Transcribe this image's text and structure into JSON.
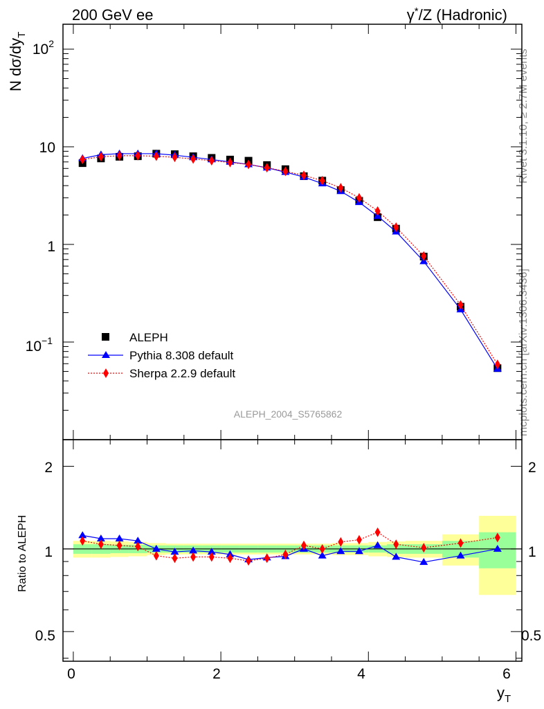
{
  "header": {
    "left_title": "200 GeV ee",
    "right_title_parts": {
      "gamma": "γ",
      "star": "*",
      "rest": "/Z (Hadronic)"
    }
  },
  "side_text": {
    "rivet_version": "Rivet 3.1.10, ≥ 2.7M events",
    "source": "mcplots.cern.ch [arXiv:1306.3436]"
  },
  "analysis_id": "ALEPH_2004_S5765862",
  "axes": {
    "main_ylabel_parts": {
      "prefix": "N dσ/dy",
      "sub": "T"
    },
    "ratio_ylabel": "Ratio to ALEPH",
    "xlabel_parts": {
      "main": "y",
      "sub": "T"
    }
  },
  "main_ytick_labels": {
    "t100": {
      "base": "10",
      "exp": "2"
    },
    "t10": "10",
    "t1": "1",
    "t01": {
      "base": "10",
      "exp": "−1"
    }
  },
  "ratio_ytick_labels": [
    "0.5",
    "1",
    "2"
  ],
  "xtick_labels": [
    "0",
    "2",
    "4",
    "6"
  ],
  "legend": [
    {
      "name": "ALEPH",
      "color": "#000000",
      "marker": "square"
    },
    {
      "name": "Pythia 8.308 default",
      "color": "#0000ff",
      "marker": "triangle"
    },
    {
      "name": "Sherpa 2.2.9 default",
      "color": "#ff0000",
      "marker": "diamond"
    }
  ],
  "chart_data": [
    {
      "type": "scatter",
      "title": "",
      "xlabel": "y_T",
      "ylabel": "N dσ/dy_T",
      "yscale": "log",
      "xlim": [
        -0.14,
        6.08
      ],
      "ylim": [
        0.01,
        180
      ],
      "x": [
        0.125,
        0.375,
        0.625,
        0.875,
        1.125,
        1.375,
        1.625,
        1.875,
        2.125,
        2.375,
        2.625,
        2.875,
        3.125,
        3.375,
        3.625,
        3.875,
        4.125,
        4.375,
        4.75,
        5.25,
        5.75
      ],
      "series": [
        {
          "name": "ALEPH",
          "values": [
            6.8,
            7.6,
            7.9,
            8.0,
            8.5,
            8.4,
            8.0,
            7.7,
            7.4,
            7.2,
            6.5,
            5.9,
            5.0,
            4.5,
            3.6,
            2.8,
            1.9,
            1.45,
            0.75,
            0.23,
            0.054
          ]
        },
        {
          "name": "Pythia 8.308 default",
          "values": [
            7.6,
            8.3,
            8.5,
            8.5,
            8.5,
            8.2,
            7.8,
            7.4,
            7.0,
            6.6,
            6.1,
            5.5,
            4.9,
            4.2,
            3.5,
            2.7,
            1.95,
            1.35,
            0.67,
            0.215,
            0.053
          ]
        },
        {
          "name": "Sherpa 2.2.9 default",
          "values": [
            7.4,
            7.9,
            8.1,
            8.1,
            8.0,
            7.8,
            7.5,
            7.2,
            6.9,
            6.6,
            6.1,
            5.6,
            5.1,
            4.5,
            3.8,
            3.0,
            2.2,
            1.5,
            0.76,
            0.24,
            0.059
          ]
        }
      ]
    },
    {
      "type": "scatter",
      "title": "",
      "xlabel": "y_T",
      "ylabel": "Ratio to ALEPH",
      "yscale": "log",
      "xlim": [
        -0.14,
        6.08
      ],
      "ylim": [
        0.39,
        2.5
      ],
      "x": [
        0.125,
        0.375,
        0.625,
        0.875,
        1.125,
        1.375,
        1.625,
        1.875,
        2.125,
        2.375,
        2.625,
        2.875,
        3.125,
        3.375,
        3.625,
        3.875,
        4.125,
        4.375,
        4.75,
        5.25,
        5.75
      ],
      "bins": [
        [
          0,
          0.25
        ],
        [
          0.25,
          0.5
        ],
        [
          0.5,
          0.75
        ],
        [
          0.75,
          1.0
        ],
        [
          1.0,
          1.25
        ],
        [
          1.25,
          1.5
        ],
        [
          1.5,
          1.75
        ],
        [
          1.75,
          2.0
        ],
        [
          2.0,
          2.25
        ],
        [
          2.25,
          2.5
        ],
        [
          2.5,
          2.75
        ],
        [
          2.75,
          3.0
        ],
        [
          3.0,
          3.25
        ],
        [
          3.25,
          3.5
        ],
        [
          3.5,
          3.75
        ],
        [
          3.75,
          4.0
        ],
        [
          4.0,
          4.25
        ],
        [
          4.25,
          4.5
        ],
        [
          4.5,
          5.0
        ],
        [
          5.0,
          5.5
        ],
        [
          5.5,
          6.0
        ]
      ],
      "stat_band": [
        0.04,
        0.04,
        0.035,
        0.035,
        0.03,
        0.03,
        0.03,
        0.03,
        0.03,
        0.03,
        0.03,
        0.03,
        0.03,
        0.03,
        0.03,
        0.03,
        0.03,
        0.04,
        0.04,
        0.07,
        0.15
      ],
      "total_band": [
        0.07,
        0.07,
        0.065,
        0.06,
        0.05,
        0.045,
        0.045,
        0.045,
        0.045,
        0.045,
        0.045,
        0.045,
        0.045,
        0.045,
        0.05,
        0.05,
        0.06,
        0.065,
        0.07,
        0.13,
        0.32
      ],
      "series": [
        {
          "name": "Pythia 8.308 default",
          "values": [
            1.12,
            1.09,
            1.09,
            1.07,
            1.0,
            0.975,
            0.985,
            0.975,
            0.955,
            0.915,
            0.93,
            0.94,
            1.0,
            0.945,
            0.98,
            0.98,
            1.03,
            0.935,
            0.895,
            0.945,
            1.0
          ]
        },
        {
          "name": "Sherpa 2.2.9 default",
          "values": [
            1.07,
            1.04,
            1.03,
            1.02,
            0.945,
            0.925,
            0.935,
            0.935,
            0.925,
            0.905,
            0.925,
            0.955,
            1.03,
            1.0,
            1.06,
            1.08,
            1.15,
            1.04,
            1.01,
            1.05,
            1.1
          ]
        }
      ]
    }
  ]
}
